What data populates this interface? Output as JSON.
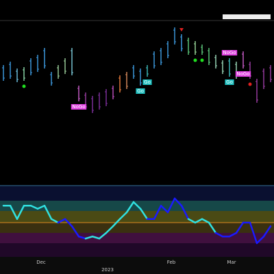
{
  "chart_data": {
    "type": "ohlc",
    "ylim": [
      0,
      270
    ],
    "high": [
      175,
      180,
      170,
      172,
      185,
      190,
      200,
      165,
      175,
      185,
      200,
      145,
      135,
      130,
      135,
      140,
      145,
      160,
      165,
      175,
      170,
      175,
      195,
      200,
      210,
      230,
      220,
      215,
      210,
      205,
      200,
      190,
      182,
      185,
      180,
      195,
      180,
      155,
      170,
      175
    ],
    "low": [
      152,
      155,
      150,
      152,
      160,
      165,
      170,
      145,
      155,
      162,
      160,
      122,
      110,
      105,
      110,
      115,
      125,
      135,
      140,
      155,
      145,
      158,
      170,
      175,
      185,
      205,
      195,
      190,
      190,
      190,
      175,
      170,
      162,
      158,
      155,
      170,
      155,
      120,
      140,
      150
    ],
    "colors": [
      "#3fa0e8",
      "#3fa0e8",
      "#6fc4e4",
      "#8fe0b0",
      "#3fa0e8",
      "#3fa0e8",
      "#3fa0e8",
      "#3fa0e8",
      "#9fd49f",
      "#9fd49f",
      "#7fd0e0",
      "#d060d0",
      "#a040a8",
      "#8030a0",
      "#8030a0",
      "#8030a0",
      "#c050c0",
      "#f08040",
      "#e09060",
      "#3fa0e8",
      "#3fa0e8",
      "#40c0c0",
      "#3fa0e8",
      "#3fa0e8",
      "#3fa0e8",
      "#3fa0e8",
      "#3fa0e8",
      "#60d080",
      "#a0e0a0",
      "#60d080",
      "#60d080",
      "#a0e0c0",
      "#a0e0c0",
      "#40c0c0",
      "#a0e0c0",
      "#d060d0",
      "#a040a8",
      "#a040a8",
      "#a040a8",
      "#a040a8"
    ],
    "annotations": [
      {
        "text": "NoGo",
        "bar": 11,
        "color": "#e040e0"
      },
      {
        "text": "Go",
        "bar": 20,
        "color": "#20c0c0"
      },
      {
        "text": "Go",
        "bar": 21,
        "color": "#20c0c0"
      },
      {
        "text": "Go",
        "bar": 33,
        "color": "#20c0c0"
      },
      {
        "text": "NoGo",
        "bar": 33,
        "color": "#e040e0"
      },
      {
        "text": "NoGo",
        "bar": 35,
        "color": "#e040e0"
      }
    ],
    "signals": [
      {
        "bar": 3,
        "shape": "dot",
        "color": "#20e020"
      },
      {
        "bar": 28,
        "shape": "dot",
        "color": "#20e020"
      },
      {
        "bar": 29,
        "shape": "dot",
        "color": "#20e020"
      },
      {
        "bar": 26,
        "shape": "triangle",
        "color": "#e02020"
      },
      {
        "bar": 36,
        "shape": "dot",
        "color": "#e02020"
      }
    ],
    "oscillator": {
      "ylim": [
        -6,
        6
      ],
      "values": [
        3.3,
        3.3,
        0.7,
        3.3,
        3.3,
        2.7,
        3.3,
        0.7,
        0,
        0.7,
        -0.7,
        -2.7,
        -3.1,
        -2.7,
        -3.1,
        -2,
        -0.7,
        0.7,
        2,
        4,
        2.7,
        0.7,
        0.7,
        3.3,
        2,
        4.7,
        3.3,
        0.7,
        0,
        0.7,
        0,
        -2,
        -2.7,
        -2.7,
        -2,
        0,
        0,
        -4,
        -2.7,
        -0.7
      ],
      "colors": [
        "#30e0e0",
        "#30e0e0",
        "#30e0e0",
        "#30e0e0",
        "#30e0e0",
        "#30e0e0",
        "#30e0e0",
        "#30e0e0",
        "#30e0e0",
        "#1a1aff",
        "#1a1aff",
        "#1a1aff",
        "#1a1aff",
        "#30e0e0",
        "#30e0e0",
        "#30e0e0",
        "#30e0e0",
        "#30e0e0",
        "#30e0e0",
        "#30e0e0",
        "#30e0e0",
        "#30e0e0",
        "#1a1aff",
        "#1a1aff",
        "#1a1aff",
        "#1a1aff",
        "#1a1aff",
        "#1a1aff",
        "#30e0e0",
        "#30e0e0",
        "#30e0e0",
        "#30e0e0",
        "#1a1aff",
        "#1a1aff",
        "#1a1aff",
        "#1a1aff",
        "#1a1aff",
        "#1a1aff",
        "#1a1aff",
        "#1a1aff"
      ]
    },
    "x_axis_labels": [
      "Dec",
      "Feb",
      "Mar"
    ],
    "year_label": "2023"
  }
}
